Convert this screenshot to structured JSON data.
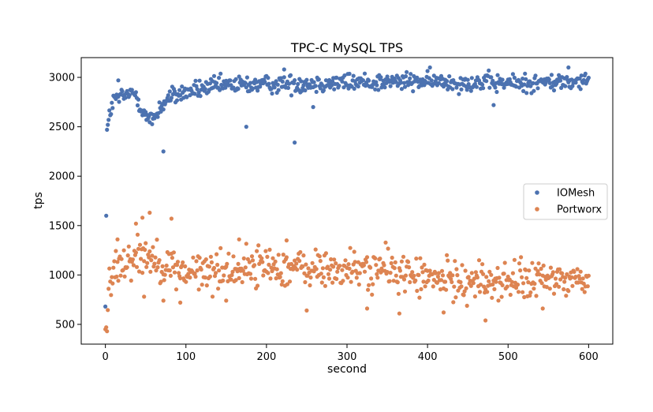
{
  "chart_data": {
    "type": "scatter",
    "title": "TPC-C MySQL TPS",
    "xlabel": "second",
    "ylabel": "tps",
    "xlim": [
      -30,
      630
    ],
    "ylim": [
      300,
      3200
    ],
    "xticks": [
      0,
      100,
      200,
      300,
      400,
      500,
      600
    ],
    "yticks": [
      500,
      1000,
      1500,
      2000,
      2500,
      3000
    ],
    "grid": false,
    "legend_position": "center-right",
    "series": [
      {
        "name": "IOMesh",
        "color": "#4c72b0",
        "anchors": [
          [
            0,
            680
          ],
          [
            1,
            1600
          ],
          [
            2,
            2470
          ],
          [
            5,
            2620
          ],
          [
            8,
            2720
          ],
          [
            12,
            2780
          ],
          [
            20,
            2800
          ],
          [
            30,
            2830
          ],
          [
            38,
            2840
          ],
          [
            42,
            2740
          ],
          [
            48,
            2650
          ],
          [
            52,
            2580
          ],
          [
            58,
            2560
          ],
          [
            63,
            2630
          ],
          [
            70,
            2720
          ],
          [
            80,
            2800
          ],
          [
            100,
            2850
          ],
          [
            130,
            2900
          ],
          [
            150,
            2920
          ],
          [
            200,
            2930
          ],
          [
            300,
            2950
          ],
          [
            400,
            2960
          ],
          [
            500,
            2940
          ],
          [
            600,
            2960
          ]
        ],
        "outliers": [
          [
            72,
            2250
          ],
          [
            175,
            2500
          ],
          [
            235,
            2340
          ],
          [
            258,
            2700
          ],
          [
            482,
            2720
          ],
          [
            16,
            2970
          ],
          [
            222,
            3080
          ],
          [
            575,
            3100
          ]
        ],
        "noise": 65
      },
      {
        "name": "Portworx",
        "color": "#dd8452",
        "anchors": [
          [
            0,
            450
          ],
          [
            1,
            470
          ],
          [
            2,
            430
          ],
          [
            4,
            860
          ],
          [
            10,
            1080
          ],
          [
            20,
            1120
          ],
          [
            30,
            1180
          ],
          [
            40,
            1200
          ],
          [
            50,
            1220
          ],
          [
            60,
            1170
          ],
          [
            80,
            1080
          ],
          [
            100,
            1020
          ],
          [
            150,
            1050
          ],
          [
            200,
            1100
          ],
          [
            250,
            1060
          ],
          [
            300,
            1050
          ],
          [
            350,
            1060
          ],
          [
            400,
            960
          ],
          [
            450,
            940
          ],
          [
            500,
            930
          ],
          [
            550,
            950
          ],
          [
            600,
            960
          ]
        ],
        "outliers": [
          [
            55,
            1630
          ],
          [
            46,
            1580
          ],
          [
            82,
            1570
          ],
          [
            38,
            1520
          ],
          [
            15,
            1360
          ],
          [
            225,
            1350
          ],
          [
            166,
            1360
          ],
          [
            48,
            780
          ],
          [
            72,
            740
          ],
          [
            93,
            720
          ],
          [
            150,
            740
          ],
          [
            250,
            640
          ],
          [
            325,
            660
          ],
          [
            365,
            610
          ],
          [
            472,
            540
          ],
          [
            420,
            620
          ],
          [
            543,
            660
          ]
        ],
        "noise": 140
      }
    ]
  }
}
